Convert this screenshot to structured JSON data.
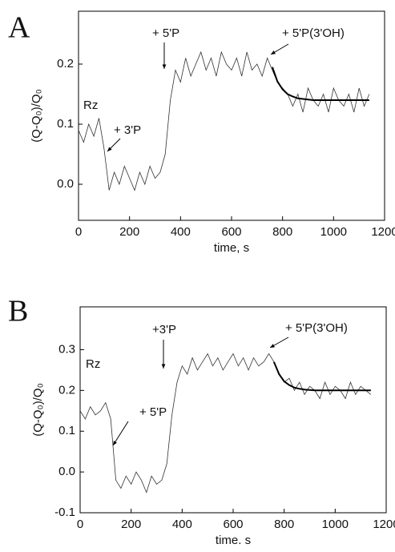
{
  "chart_data": [
    {
      "type": "line",
      "label": "A",
      "xlabel": "time, s",
      "ylabel": "(Q-Q₀)/Q₀",
      "annotations": [
        "Rz",
        "+ 3'P",
        "+ 5'P",
        "+ 5'P(3'OH)"
      ],
      "x": [
        0,
        20,
        40,
        60,
        80,
        100,
        120,
        140,
        160,
        180,
        200,
        220,
        240,
        260,
        280,
        300,
        320,
        340,
        360,
        380,
        400,
        420,
        440,
        460,
        480,
        500,
        520,
        540,
        560,
        580,
        600,
        620,
        640,
        660,
        680,
        700,
        720,
        740,
        760,
        780,
        800,
        820,
        840,
        860,
        880,
        900,
        920,
        940,
        960,
        980,
        1000,
        1020,
        1040,
        1060,
        1080,
        1100,
        1120,
        1140
      ],
      "series": [
        {
          "color": "#333333",
          "values": [
            0.09,
            0.07,
            0.1,
            0.08,
            0.11,
            0.06,
            -0.01,
            0.02,
            0.0,
            0.03,
            0.01,
            -0.01,
            0.02,
            0.0,
            0.03,
            0.01,
            0.02,
            0.05,
            0.14,
            0.19,
            0.17,
            0.21,
            0.18,
            0.2,
            0.22,
            0.19,
            0.21,
            0.18,
            0.22,
            0.2,
            0.19,
            0.21,
            0.18,
            0.22,
            0.19,
            0.2,
            0.18,
            0.21,
            0.19,
            0.17,
            0.16,
            0.15,
            0.13,
            0.15,
            0.12,
            0.16,
            0.14,
            0.13,
            0.15,
            0.12,
            0.16,
            0.14,
            0.13,
            0.15,
            0.12,
            0.16,
            0.13,
            0.15
          ]
        },
        {
          "color": "#000000",
          "values": [
            null,
            null,
            null,
            null,
            null,
            null,
            null,
            null,
            null,
            null,
            null,
            null,
            null,
            null,
            null,
            null,
            null,
            null,
            null,
            null,
            null,
            null,
            null,
            null,
            null,
            null,
            null,
            null,
            null,
            null,
            null,
            null,
            null,
            null,
            null,
            null,
            null,
            null,
            0.195,
            0.171,
            0.158,
            0.15,
            0.146,
            0.143,
            0.142,
            0.141,
            0.14,
            0.14,
            0.14,
            0.14,
            0.14,
            0.14,
            0.14,
            0.14,
            0.14,
            0.14,
            0.14,
            0.14
          ]
        }
      ],
      "xlim": [
        0,
        1200
      ],
      "xticks": [
        0,
        200,
        400,
        600,
        800,
        1000,
        1200
      ],
      "ylim": [
        -0.06,
        0.288
      ],
      "yticks": [
        {
          "value": 0,
          "label": "0.0"
        },
        0.1,
        0.2
      ]
    },
    {
      "type": "line",
      "label": "B",
      "xlabel": "time. s",
      "ylabel": "(Q-Q₀)/Q₀",
      "annotations": [
        "Rz",
        "+ 5'P",
        "+3'P",
        "+ 5'P(3'OH)"
      ],
      "x": [
        0,
        20,
        40,
        60,
        80,
        100,
        120,
        140,
        160,
        180,
        200,
        220,
        240,
        260,
        280,
        300,
        320,
        340,
        360,
        380,
        400,
        420,
        440,
        460,
        480,
        500,
        520,
        540,
        560,
        580,
        600,
        620,
        640,
        660,
        680,
        700,
        720,
        740,
        760,
        780,
        800,
        820,
        840,
        860,
        880,
        900,
        920,
        940,
        960,
        980,
        1000,
        1020,
        1040,
        1060,
        1080,
        1100,
        1120,
        1140
      ],
      "series": [
        {
          "color": "#333333",
          "values": [
            0.15,
            0.13,
            0.16,
            0.14,
            0.15,
            0.17,
            0.13,
            -0.02,
            -0.04,
            -0.01,
            -0.03,
            0.0,
            -0.02,
            -0.05,
            -0.01,
            -0.03,
            -0.02,
            0.02,
            0.14,
            0.22,
            0.26,
            0.24,
            0.28,
            0.25,
            0.27,
            0.29,
            0.26,
            0.28,
            0.25,
            0.27,
            0.29,
            0.26,
            0.28,
            0.25,
            0.28,
            0.26,
            0.27,
            0.29,
            0.27,
            0.24,
            0.22,
            0.23,
            0.2,
            0.22,
            0.19,
            0.21,
            0.2,
            0.18,
            0.22,
            0.19,
            0.21,
            0.2,
            0.18,
            0.22,
            0.19,
            0.21,
            0.2,
            0.19
          ]
        },
        {
          "color": "#000000",
          "values": [
            null,
            null,
            null,
            null,
            null,
            null,
            null,
            null,
            null,
            null,
            null,
            null,
            null,
            null,
            null,
            null,
            null,
            null,
            null,
            null,
            null,
            null,
            null,
            null,
            null,
            null,
            null,
            null,
            null,
            null,
            null,
            null,
            null,
            null,
            null,
            null,
            null,
            null,
            0.27,
            0.24,
            0.222,
            0.213,
            0.207,
            0.204,
            0.202,
            0.201,
            0.2,
            0.2,
            0.2,
            0.2,
            0.2,
            0.2,
            0.2,
            0.2,
            0.2,
            0.2,
            0.2,
            0.2
          ]
        }
      ],
      "xlim": [
        0,
        1200
      ],
      "xticks": [
        0,
        200,
        400,
        600,
        800,
        1000,
        1200
      ],
      "ylim": [
        -0.1,
        0.405
      ],
      "yticks": [
        -0.1,
        {
          "value": 0,
          "label": "0.0"
        },
        0.1,
        0.2,
        0.3
      ]
    }
  ]
}
